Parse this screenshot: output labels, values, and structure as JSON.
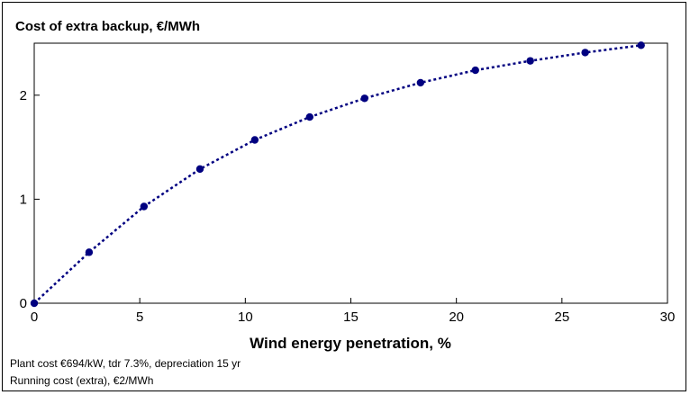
{
  "chart_data": {
    "type": "line",
    "title": "Cost of extra backup, €/MWh",
    "xlabel": "Wind energy penetration, %",
    "ylabel": "",
    "xlim": [
      0,
      30
    ],
    "ylim": [
      0,
      2.5
    ],
    "x_ticks": [
      "0",
      "5",
      "10",
      "15",
      "20",
      "25",
      "30"
    ],
    "y_ticks": [
      "0",
      "1",
      "2"
    ],
    "grid": false,
    "series": [
      {
        "x": [
          0,
          2.6,
          5.2,
          7.85,
          10.45,
          13.05,
          15.65,
          18.3,
          20.9,
          23.5,
          26.1,
          28.75
        ],
        "y": [
          0,
          0.49,
          0.93,
          1.29,
          1.57,
          1.79,
          1.97,
          2.12,
          2.24,
          2.33,
          2.41,
          2.48
        ],
        "color": "#000080",
        "style": "dotted-with-markers"
      }
    ]
  },
  "notes": [
    "Plant cost €694/kW, tdr 7.3%, depreciation 15 yr",
    "Running cost (extra), €2/MWh"
  ]
}
